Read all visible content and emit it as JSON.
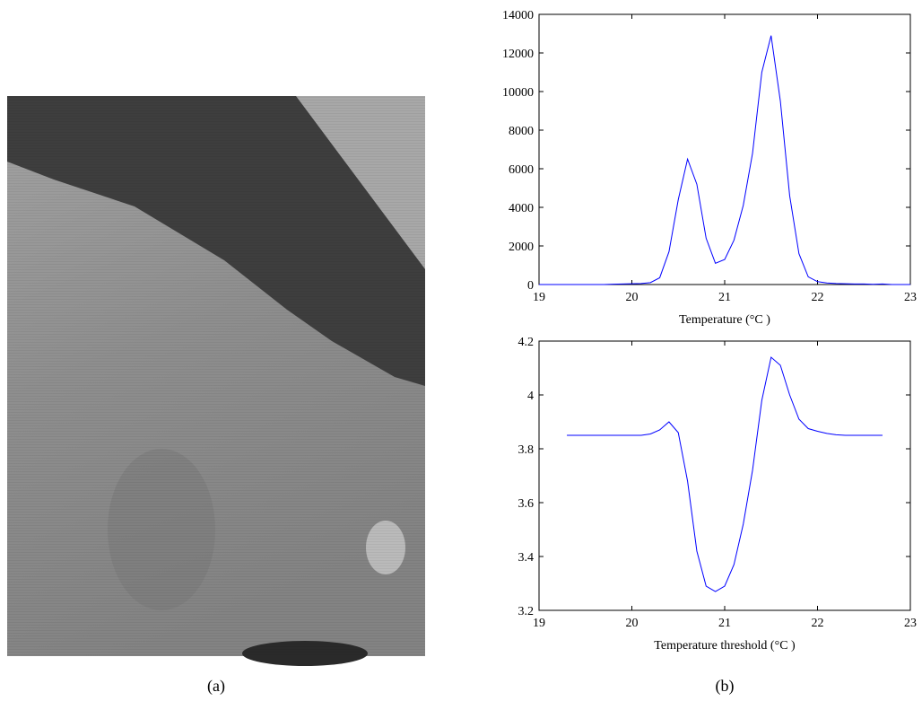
{
  "chart_data": [
    {
      "type": "line",
      "xlabel": "Temperature (°C )",
      "x": [
        19,
        19.1,
        19.2,
        19.3,
        19.4,
        19.5,
        19.6,
        19.7,
        19.8,
        19.9,
        20,
        20.1,
        20.2,
        20.3,
        20.4,
        20.5,
        20.6,
        20.7,
        20.8,
        20.9,
        21,
        21.1,
        21.2,
        21.3,
        21.4,
        21.5,
        21.6,
        21.7,
        21.8,
        21.9,
        22,
        22.1,
        22.2,
        22.3,
        22.4,
        22.5,
        22.6,
        22.7,
        22.8,
        22.9,
        23
      ],
      "values": [
        0,
        0,
        0,
        0,
        0,
        0,
        0,
        0,
        20,
        30,
        40,
        50,
        100,
        350,
        1700,
        4400,
        6500,
        5200,
        2400,
        1100,
        1300,
        2300,
        4100,
        6800,
        11000,
        12900,
        9500,
        4600,
        1600,
        400,
        150,
        80,
        50,
        40,
        30,
        30,
        10,
        30,
        0,
        0,
        0
      ],
      "color": "#0000ff",
      "xlim": [
        19,
        23
      ],
      "xticks": [
        19,
        20,
        21,
        22,
        23
      ],
      "ylim": [
        0,
        14000
      ],
      "yticks": [
        0,
        2000,
        4000,
        6000,
        8000,
        10000,
        12000,
        14000
      ]
    },
    {
      "type": "line",
      "xlabel": "Temperature threshold (°C )",
      "x": [
        19.3,
        19.4,
        19.5,
        19.6,
        19.7,
        19.8,
        19.9,
        20,
        20.1,
        20.2,
        20.3,
        20.4,
        20.5,
        20.6,
        20.7,
        20.8,
        20.9,
        21,
        21.1,
        21.2,
        21.3,
        21.4,
        21.5,
        21.6,
        21.7,
        21.8,
        21.9,
        22,
        22.1,
        22.2,
        22.3,
        22.4,
        22.5,
        22.6,
        22.7
      ],
      "values": [
        3.85,
        3.85,
        3.85,
        3.85,
        3.85,
        3.85,
        3.85,
        3.85,
        3.85,
        3.855,
        3.87,
        3.9,
        3.86,
        3.68,
        3.42,
        3.29,
        3.27,
        3.29,
        3.37,
        3.52,
        3.72,
        3.98,
        4.14,
        4.11,
        4,
        3.91,
        3.875,
        3.865,
        3.857,
        3.852,
        3.85,
        3.85,
        3.85,
        3.85,
        3.85
      ],
      "color": "#0000ff",
      "xlim": [
        19,
        23
      ],
      "xticks": [
        19,
        20,
        21,
        22,
        23
      ],
      "ylim": [
        3.2,
        4.2
      ],
      "yticks": [
        3.2,
        3.4,
        3.6,
        3.8,
        4,
        4.2
      ]
    }
  ],
  "captions": [
    "(a)",
    "(b)"
  ]
}
